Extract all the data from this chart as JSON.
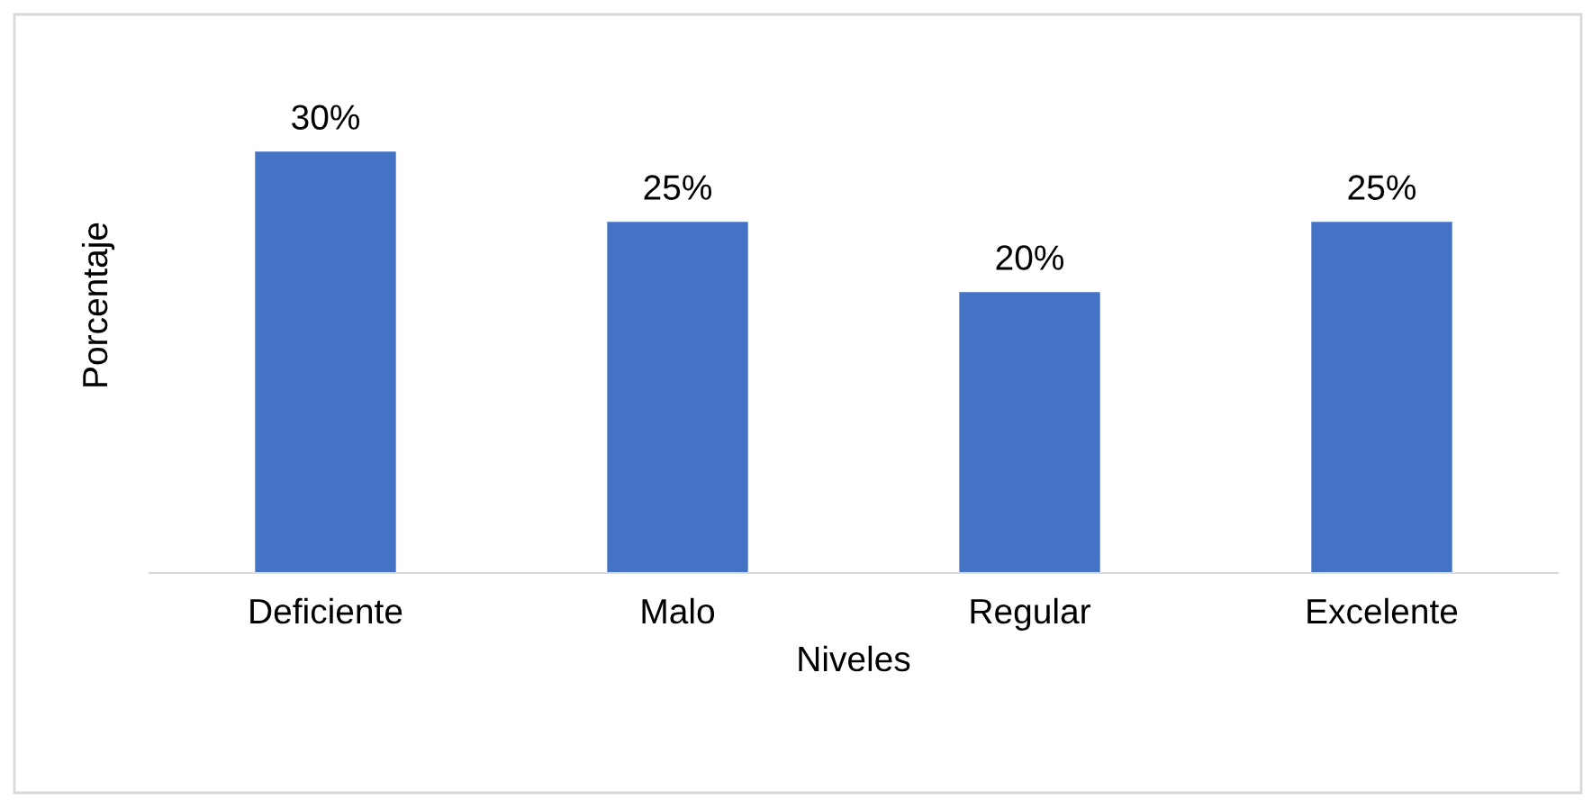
{
  "chart_data": {
    "type": "bar",
    "xlabel": "Niveles",
    "ylabel": "Porcentaje",
    "categories": [
      "Deficiente",
      "Malo",
      "Regular",
      "Excelente"
    ],
    "values": [
      30,
      25,
      20,
      25
    ],
    "value_labels": [
      "30%",
      "25%",
      "20%",
      "25%"
    ],
    "color": "#4472c4",
    "tick_labels": "x",
    "grid": false
  }
}
